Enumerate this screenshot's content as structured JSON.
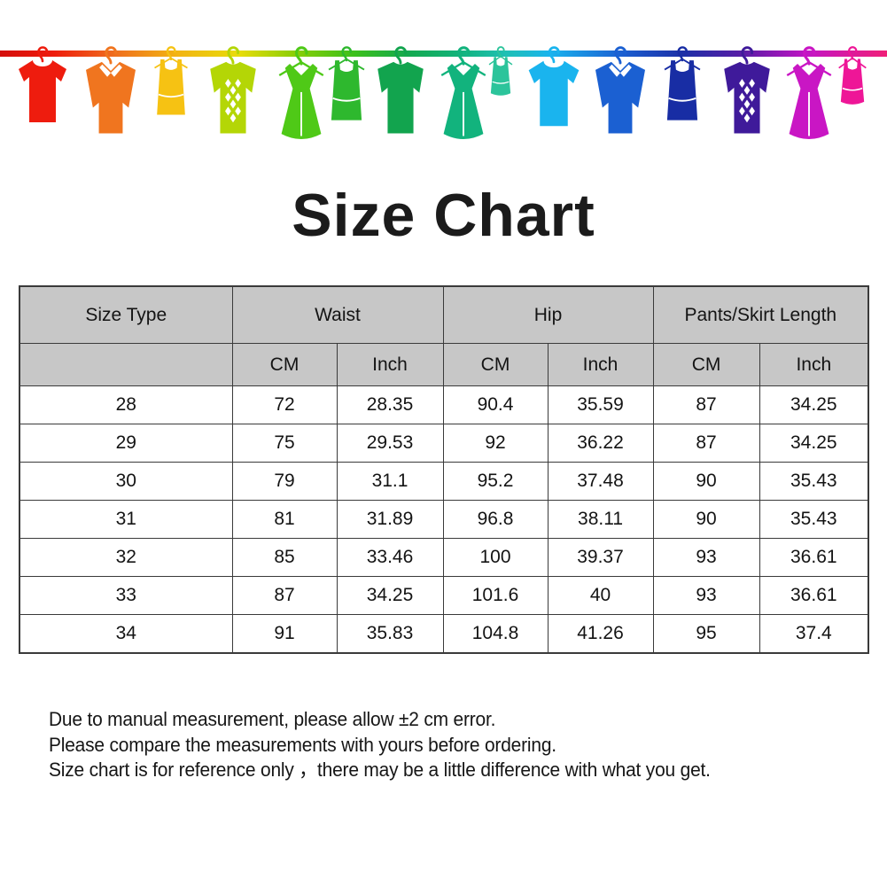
{
  "title": "Size Chart",
  "banner": {
    "line_gradient": [
      "#d40f0c",
      "#ee1b0c",
      "#ef6f1e",
      "#f2b413",
      "#e8dc0a",
      "#8ecf06",
      "#3cc01c",
      "#14a94f",
      "#12b37d",
      "#1fc0b4",
      "#1ab4ee",
      "#1b60d2",
      "#1c2fa6",
      "#5c1ca6",
      "#c215c4",
      "#f01f78"
    ],
    "items": [
      {
        "name": "red-tshirt-icon",
        "type": "tshirt",
        "color": "#ee1c0e"
      },
      {
        "name": "orange-shirt-icon",
        "type": "shirt",
        "color": "#f0751f"
      },
      {
        "name": "yellow-tank-icon",
        "type": "tank",
        "color": "#f6c213"
      },
      {
        "name": "yellowgreen-sweater-icon",
        "type": "sweaterpattern",
        "color": "#b4d606"
      },
      {
        "name": "green-dress-icon",
        "type": "dress",
        "color": "#4fc917"
      },
      {
        "name": "green-tank-icon",
        "type": "tank",
        "color": "#2eb82e"
      },
      {
        "name": "green-sweater-icon",
        "type": "sweater",
        "color": "#12a44e"
      },
      {
        "name": "teal-dress-icon",
        "type": "dress",
        "color": "#12b37d"
      },
      {
        "name": "teal-cami-icon",
        "type": "cami",
        "color": "#2cc49b"
      },
      {
        "name": "cyan-tshirt-icon",
        "type": "tshirt",
        "color": "#1ab4ee"
      },
      {
        "name": "blue-shirt-icon",
        "type": "shirt",
        "color": "#1b60d2"
      },
      {
        "name": "navy-tank-icon",
        "type": "tank",
        "color": "#182da4"
      },
      {
        "name": "purple-argyle-sweater-icon",
        "type": "sweaterpattern",
        "color": "#3f1a9a"
      },
      {
        "name": "magenta-dress-icon",
        "type": "dress",
        "color": "#c916c4"
      },
      {
        "name": "pink-cami-icon",
        "type": "cami",
        "color": "#ee1697"
      }
    ]
  },
  "table": {
    "col_groups": [
      {
        "label": "Size Type",
        "colspan": 1
      },
      {
        "label": "Waist",
        "colspan": 2
      },
      {
        "label": "Hip",
        "colspan": 2
      },
      {
        "label": "Pants/Skirt Length",
        "colspan": 2
      }
    ],
    "sub_headers": [
      "",
      "CM",
      "Inch",
      "CM",
      "Inch",
      "CM",
      "Inch"
    ],
    "rows": [
      [
        "28",
        "72",
        "28.35",
        "90.4",
        "35.59",
        "87",
        "34.25"
      ],
      [
        "29",
        "75",
        "29.53",
        "92",
        "36.22",
        "87",
        "34.25"
      ],
      [
        "30",
        "79",
        "31.1",
        "95.2",
        "37.48",
        "90",
        "35.43"
      ],
      [
        "31",
        "81",
        "31.89",
        "96.8",
        "38.11",
        "90",
        "35.43"
      ],
      [
        "32",
        "85",
        "33.46",
        "100",
        "39.37",
        "93",
        "36.61"
      ],
      [
        "33",
        "87",
        "34.25",
        "101.6",
        "40",
        "93",
        "36.61"
      ],
      [
        "34",
        "91",
        "35.83",
        "104.8",
        "41.26",
        "95",
        "37.4"
      ]
    ]
  },
  "notes": [
    "Due to manual measurement, please allow ±2 cm error.",
    "Please compare the measurements with yours before ordering.",
    "Size chart is for reference only ，there may be a little difference with what you get."
  ],
  "colors": {
    "header_bg": "#c7c7c7",
    "border": "#3a3a3a",
    "text": "#141414"
  }
}
